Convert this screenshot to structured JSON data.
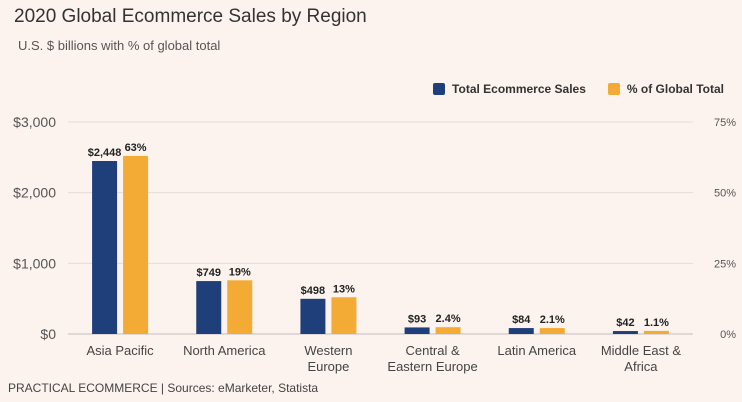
{
  "chart_data": {
    "type": "bar",
    "title": "2020 Global Ecommerce Sales by Region",
    "subtitle": "U.S. $ billions with % of global total",
    "categories": [
      [
        "Asia Pacific"
      ],
      [
        "North America"
      ],
      [
        "Western",
        "Europe"
      ],
      [
        "Central &",
        "Eastern Europe"
      ],
      [
        "Latin America"
      ],
      [
        "Middle East &",
        "Africa"
      ]
    ],
    "series": [
      {
        "name": "Total Ecommerce Sales",
        "axis": "left",
        "color": "#1f3f7a",
        "values": [
          2448,
          749,
          498,
          93,
          84,
          42
        ],
        "labels": [
          "$2,448",
          "$749",
          "$498",
          "$93",
          "$84",
          "$42"
        ]
      },
      {
        "name": "% of Global Total",
        "axis": "right",
        "color": "#f3ab35",
        "values": [
          63,
          19,
          13,
          2.4,
          2.1,
          1.1
        ],
        "labels": [
          "63%",
          "19%",
          "13%",
          "2.4%",
          "2.1%",
          "1.1%"
        ]
      }
    ],
    "y_left": {
      "range": [
        0,
        3000
      ],
      "ticks": [
        0,
        1000,
        2000,
        3000
      ],
      "tick_labels": [
        "$0",
        "$1,000",
        "$2,000",
        "$3,000"
      ]
    },
    "y_right": {
      "range": [
        0,
        75
      ],
      "ticks": [
        0,
        25,
        50,
        75
      ],
      "tick_labels": [
        "0%",
        "25%",
        "50%",
        "75%"
      ]
    },
    "grid": true,
    "legend_position": "top-right"
  },
  "source": "PRACTICAL ECOMMERCE | Sources: eMarketer, Statista"
}
